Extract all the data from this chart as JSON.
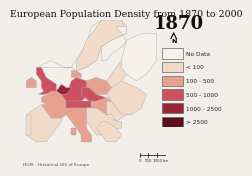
{
  "title": "European Population Density from 1870 to 2000",
  "year_label": "1870",
  "bg_color": "#f2efea",
  "sea_color": "#c8d8e8",
  "border_color": "#999999",
  "legend_entries": [
    {
      "label": "No Data",
      "color": "#f5f1e8"
    },
    {
      "label": "< 100",
      "color": "#f2dac8"
    },
    {
      "label": "100 - 500",
      "color": "#e8a090"
    },
    {
      "label": "500 - 1000",
      "color": "#cc5060"
    },
    {
      "label": "1000 - 2500",
      "color": "#9a2535"
    },
    {
      "label": "> 2500",
      "color": "#5c0f18"
    }
  ],
  "source_text": "HGIS - Historical GIS of Europe",
  "title_fontsize": 6.8,
  "year_fontsize": 13,
  "legend_fontsize": 4.2,
  "map_extent": [
    -12,
    42,
    32,
    72
  ]
}
